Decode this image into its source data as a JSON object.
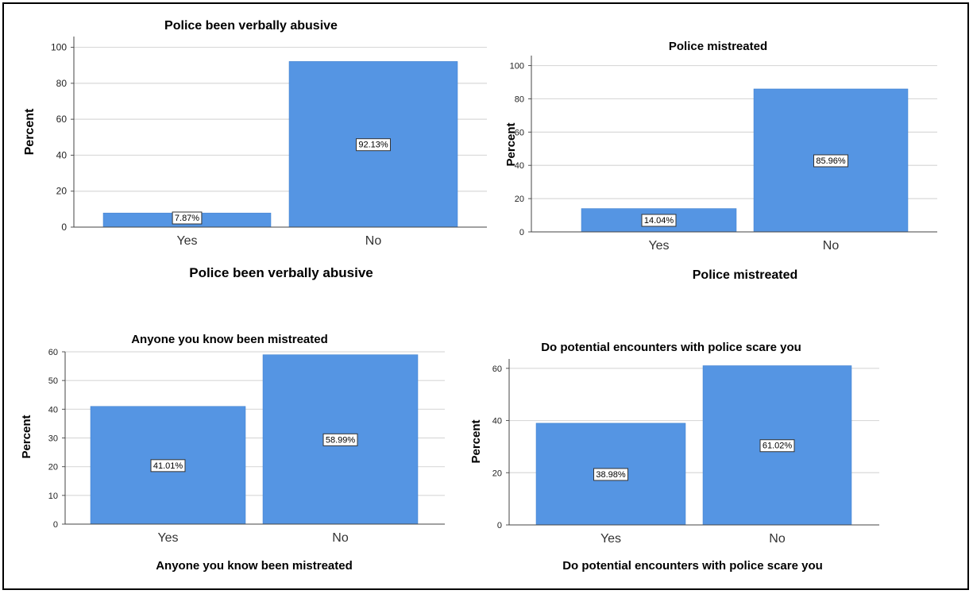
{
  "chart_data": [
    {
      "type": "bar",
      "title": "Police been verbally abusive",
      "xlabel": "Police been verbally abusive",
      "ylabel": "Percent",
      "categories": [
        "Yes",
        "No"
      ],
      "values": [
        7.87,
        92.13
      ],
      "data_labels": [
        "7.87%",
        "92.13%"
      ],
      "ylim": [
        0,
        100
      ],
      "yticks": [
        0,
        20,
        40,
        60,
        80,
        100
      ],
      "grid": true,
      "bar_color": "#5595e3"
    },
    {
      "type": "bar",
      "title": "Police mistreated",
      "xlabel": "Police mistreated",
      "ylabel": "Percent",
      "categories": [
        "Yes",
        "No"
      ],
      "values": [
        14.04,
        85.96
      ],
      "data_labels": [
        "14.04%",
        "85.96%"
      ],
      "ylim": [
        0,
        100
      ],
      "yticks": [
        0,
        20,
        40,
        60,
        80,
        100
      ],
      "grid": true,
      "bar_color": "#5595e3"
    },
    {
      "type": "bar",
      "title": "Anyone you know been mistreated",
      "xlabel": "Anyone you know been mistreated",
      "ylabel": "Percent",
      "categories": [
        "Yes",
        "No"
      ],
      "values": [
        41.01,
        58.99
      ],
      "data_labels": [
        "41.01%",
        "58.99%"
      ],
      "ylim": [
        0,
        60
      ],
      "yticks": [
        0,
        10,
        20,
        30,
        40,
        50,
        60
      ],
      "grid": true,
      "bar_color": "#5595e3"
    },
    {
      "type": "bar",
      "title": "Do potential encounters with police scare you",
      "xlabel": "Do potential encounters with police scare you",
      "ylabel": "Percent",
      "categories": [
        "Yes",
        "No"
      ],
      "values": [
        38.98,
        61.02
      ],
      "data_labels": [
        "38.98%",
        "61.02%"
      ],
      "ylim": [
        0,
        60
      ],
      "yticks": [
        0,
        20,
        40,
        60
      ],
      "grid": true,
      "bar_color": "#5595e3"
    }
  ]
}
